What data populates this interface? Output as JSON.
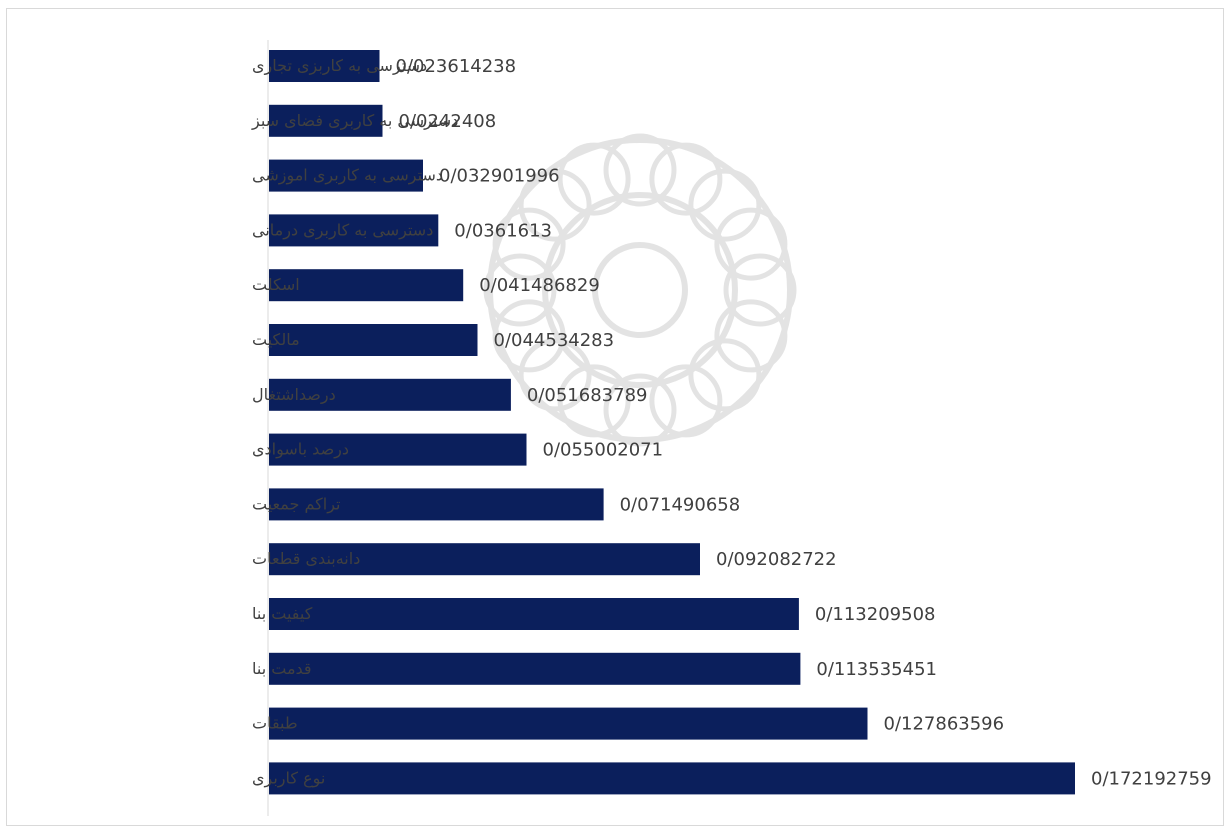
{
  "chart_data": {
    "type": "bar",
    "orientation": "horizontal",
    "title": "",
    "xlabel": "",
    "ylabel": "",
    "categories": [
      "دسترسی به کاربزی تجاری",
      "دسترسی به کاربری فضای سبز",
      "دسترسی به کاربری اموزشی",
      "دسترسی به کاربری درمانی",
      "اسکلت",
      "مالکیت",
      "درصداشتغال",
      "درصد باسوادی",
      "تراکم جمعیت",
      "دانه‌بندی قطعات",
      "کیفیت بنا",
      "قدمت بنا",
      "طبقات",
      "نوع کاربری"
    ],
    "values": [
      0.023614238,
      0.0242408,
      0.032901996,
      0.0361613,
      0.041486829,
      0.044534283,
      0.051683789,
      0.055002071,
      0.071490658,
      0.092082722,
      0.113209508,
      0.113535451,
      0.127863596,
      0.172192759
    ],
    "value_labels": [
      "0/023614238",
      "0/0242408",
      "0/032901996",
      "0/0361613",
      "0/041486829",
      "0/044534283",
      "0/051683789",
      "0/055002071",
      "0/071490658",
      "0/092082722",
      "0/113209508",
      "0/113535451",
      "0/127863596",
      "0/172192759"
    ],
    "xlim": [
      0,
      0.172192759
    ],
    "grid": false,
    "legend": "none",
    "colors": {
      "bar": "#0b1f5c",
      "bar_light": "#1f3d7a",
      "axis": "#d9d9d9",
      "text": "#404040"
    }
  }
}
